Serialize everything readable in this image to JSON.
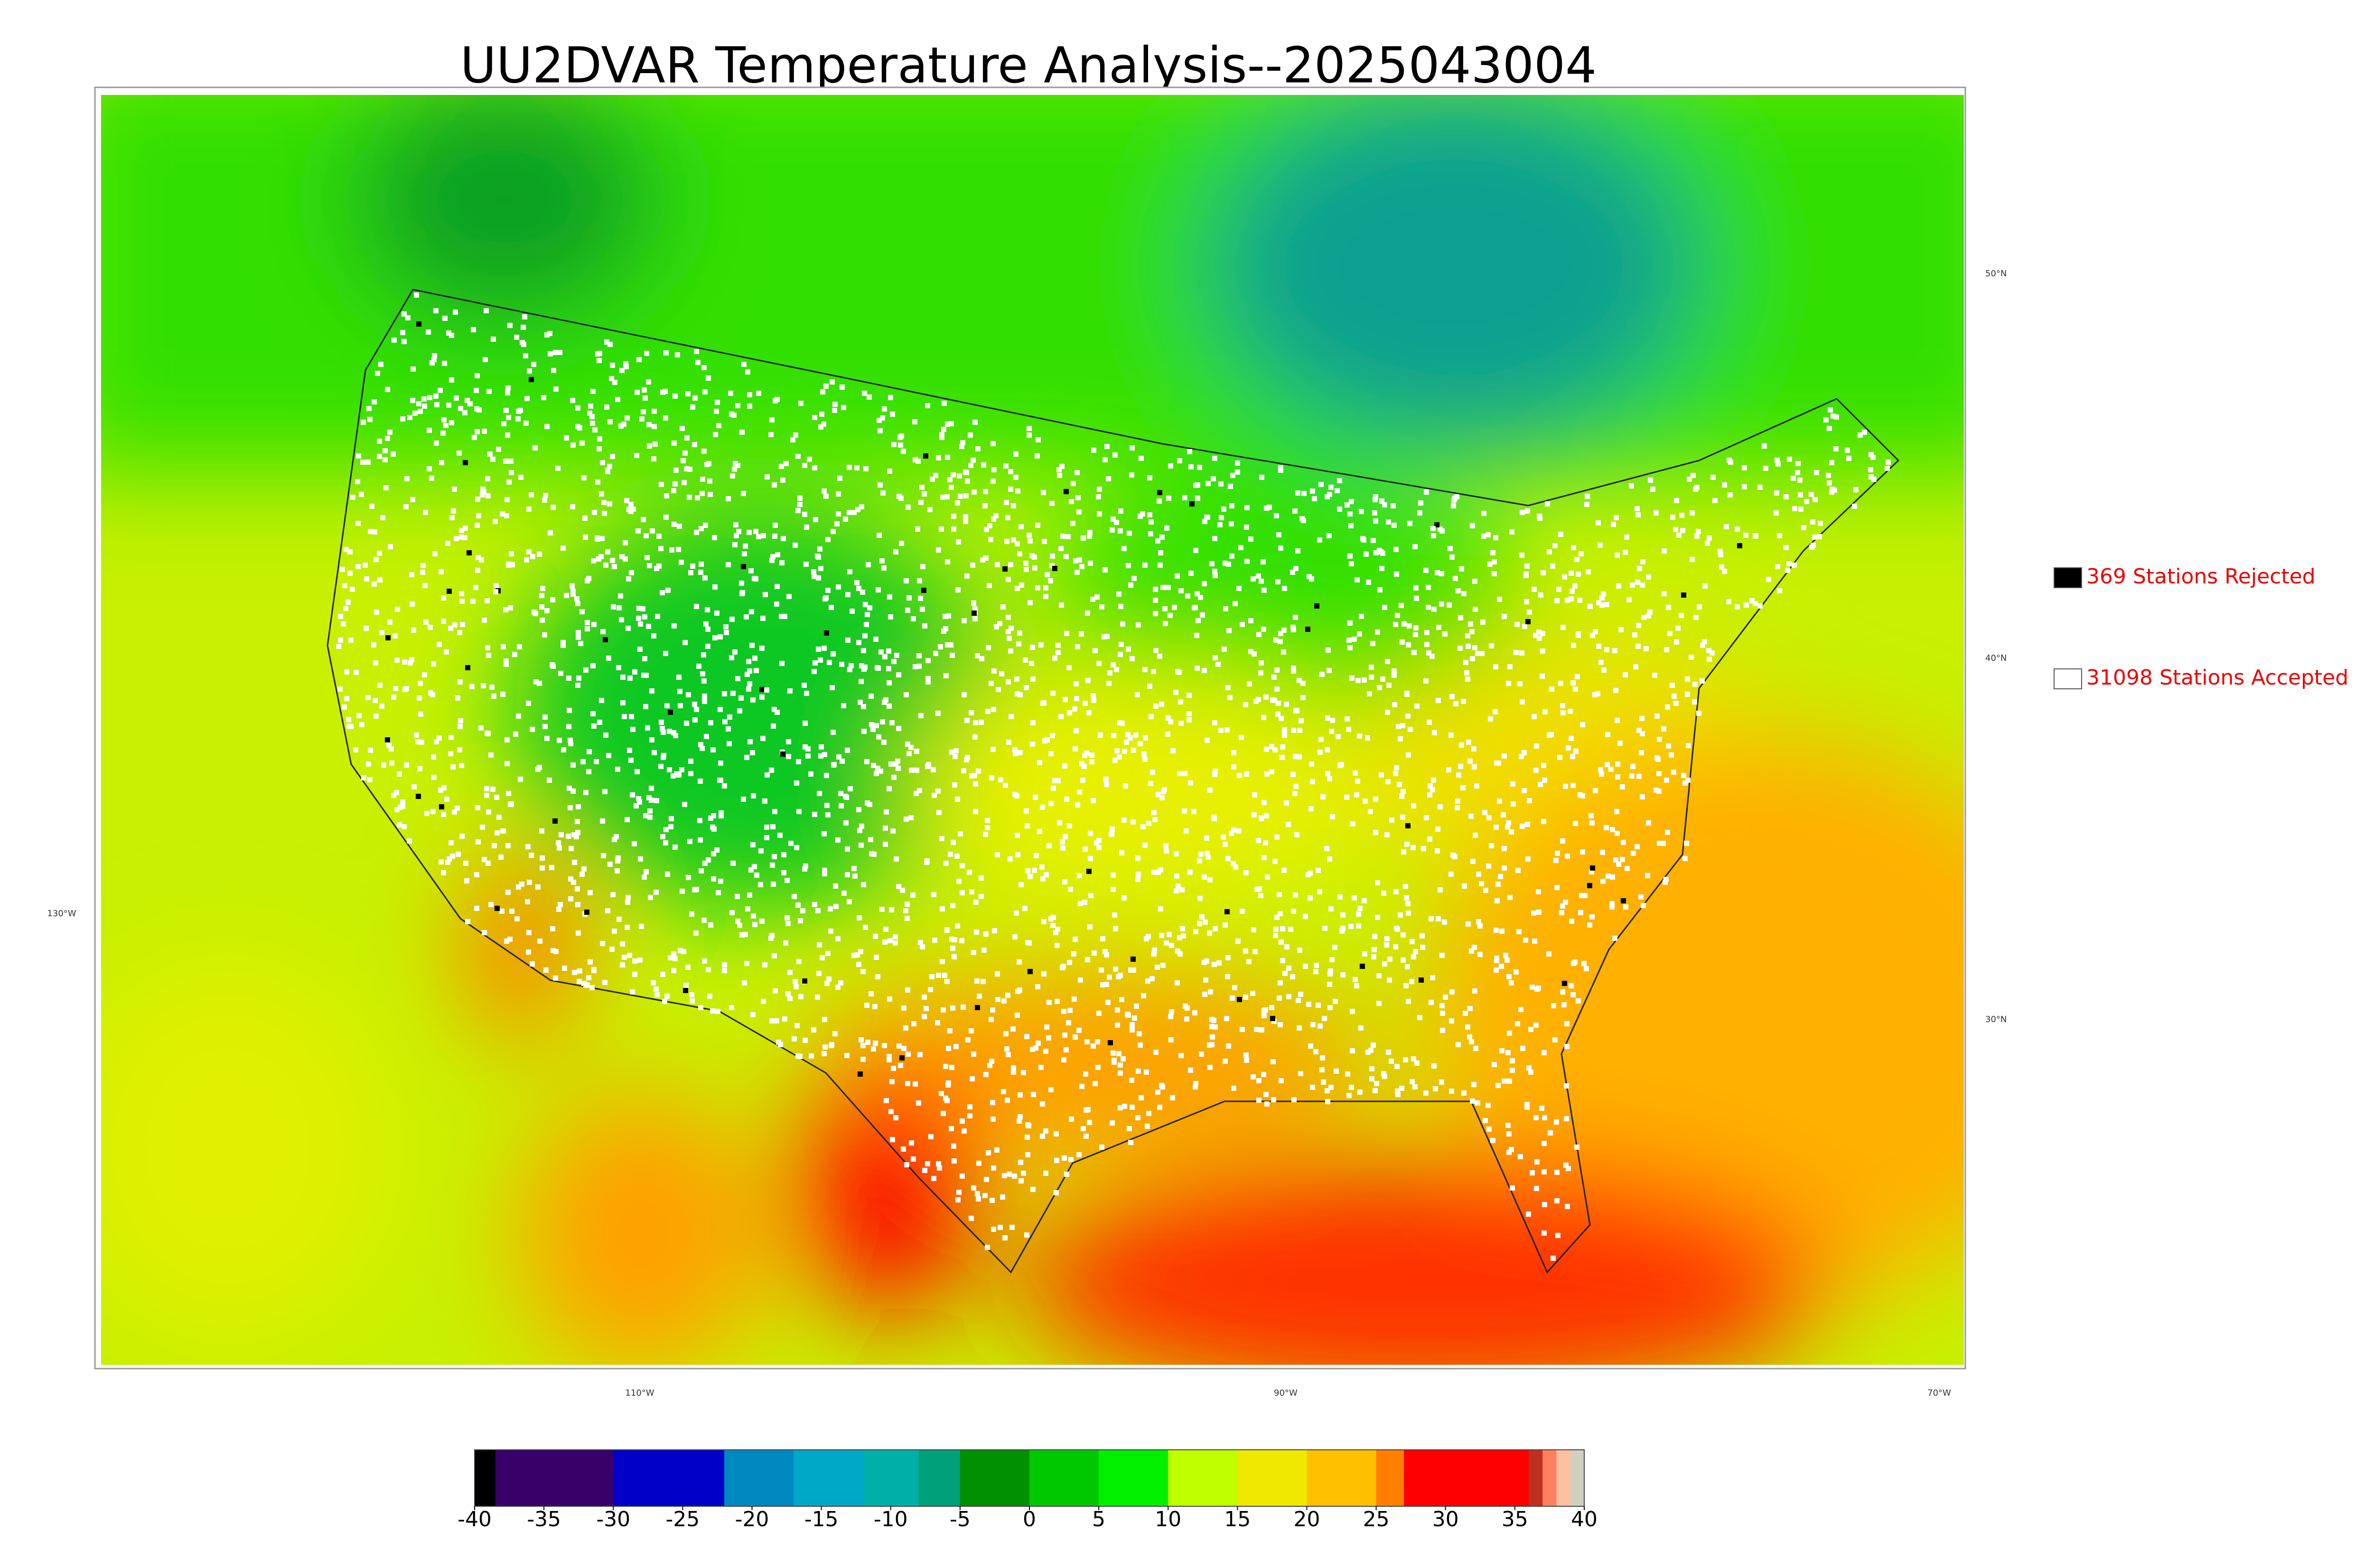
{
  "title": "UU2DVAR Temperature Analysis--2025043004",
  "map": {
    "lat_labels": [
      "50°N",
      "40°N",
      "30°N"
    ],
    "lon_labels": [
      "130°W",
      "110°W",
      "90°W",
      "70°W"
    ]
  },
  "legend": {
    "items": [
      {
        "label": "369 Stations Rejected",
        "color": "#000000"
      },
      {
        "label": "31098 Stations Accepted",
        "color": "#ffffff"
      }
    ]
  },
  "colorbar": {
    "lim": [
      -40,
      40
    ],
    "ticks": [
      -40,
      -35,
      -30,
      -25,
      -20,
      -15,
      -10,
      -5,
      0,
      5,
      10,
      15,
      20,
      25,
      30,
      35,
      40
    ],
    "color_stops": [
      {
        "value": -40,
        "color": "#000000"
      },
      {
        "value": -38.5,
        "color": "#3a006a"
      },
      {
        "value": -30,
        "color": "#0000c8"
      },
      {
        "value": -22,
        "color": "#0088c0"
      },
      {
        "value": -17,
        "color": "#00a8c8"
      },
      {
        "value": -12,
        "color": "#00b0a8"
      },
      {
        "value": -8,
        "color": "#00a078"
      },
      {
        "value": -5,
        "color": "#009000"
      },
      {
        "value": 0,
        "color": "#00c800"
      },
      {
        "value": 5,
        "color": "#00f000"
      },
      {
        "value": 10,
        "color": "#c0ff00"
      },
      {
        "value": 15,
        "color": "#f0e800"
      },
      {
        "value": 20,
        "color": "#ffc000"
      },
      {
        "value": 25,
        "color": "#ff8000"
      },
      {
        "value": 27,
        "color": "#ff0000"
      },
      {
        "value": 36,
        "color": "#c03020"
      },
      {
        "value": 37,
        "color": "#ff8060"
      },
      {
        "value": 38,
        "color": "#ffc0a0"
      },
      {
        "value": 39,
        "color": "#d0d0c0"
      }
    ]
  }
}
